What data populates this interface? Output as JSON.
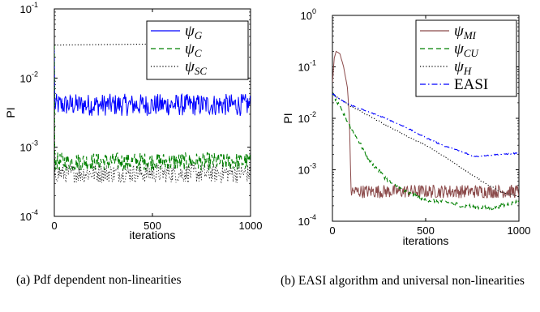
{
  "chart_data": [
    {
      "type": "line",
      "yscale": "log",
      "xlim": [
        0,
        1000
      ],
      "ylim": [
        0.0001,
        0.1
      ],
      "xlabel": "iterations",
      "ylabel": "PI",
      "xticks": [
        0,
        500,
        1000
      ],
      "xtick_labels": [
        "0",
        "500",
        "1000"
      ],
      "yticks": [
        0.0001,
        0.001,
        0.01,
        0.1
      ],
      "ytick_labels": [
        [
          "10",
          "-4"
        ],
        [
          "10",
          "-3"
        ],
        [
          "10",
          "-2"
        ],
        [
          "10",
          "-1"
        ]
      ],
      "grid": false,
      "legend_position": "top-right",
      "caption": "(a) Pdf dependent non-linearities",
      "series": [
        {
          "name": [
            "ψ",
            "G"
          ],
          "color": "#0000ff",
          "style": "solid",
          "start": 0.03,
          "level": 0.0041,
          "spread": 0.16
        },
        {
          "name": [
            "ψ",
            "C"
          ],
          "color": "#008000",
          "style": "dashed",
          "start": 0.03,
          "level": 0.00062,
          "spread": 0.13
        },
        {
          "name": [
            "ψ",
            "SC"
          ],
          "color": "#000000",
          "style": "dotted",
          "start": 0.03,
          "level": 0.032,
          "spread": 0.0,
          "extra_level": 0.00042,
          "extra_spread": 0.14
        }
      ]
    },
    {
      "type": "line",
      "yscale": "log",
      "xlim": [
        0,
        1000
      ],
      "ylim": [
        0.0001,
        1
      ],
      "xlabel": "iterations",
      "ylabel": "PI",
      "xticks": [
        0,
        500,
        1000
      ],
      "xtick_labels": [
        "0",
        "500",
        "1000"
      ],
      "yticks": [
        0.0001,
        0.001,
        0.01,
        0.1,
        1
      ],
      "ytick_labels": [
        [
          "10",
          "-4"
        ],
        [
          "10",
          "-3"
        ],
        [
          "10",
          "-2"
        ],
        [
          "10",
          "-1"
        ],
        [
          "10",
          "0"
        ]
      ],
      "grid": false,
      "legend_position": "top-right",
      "caption": "(b) EASI algorithm and universal non-linearities",
      "series": [
        {
          "name": [
            "ψ",
            "MI"
          ],
          "color": "#8b4a4a",
          "style": "solid",
          "points": [
            [
              0,
              0.05
            ],
            [
              10,
              0.15
            ],
            [
              20,
              0.2
            ],
            [
              40,
              0.18
            ],
            [
              60,
              0.1
            ],
            [
              80,
              0.04
            ],
            [
              90,
              0.012
            ],
            [
              100,
              0.0004
            ]
          ],
          "level": 0.00038,
          "spread": 0.13
        },
        {
          "name": [
            "ψ",
            "CU"
          ],
          "color": "#008000",
          "style": "dashed",
          "points": [
            [
              0,
              0.03
            ],
            [
              100,
              0.0065
            ],
            [
              200,
              0.0015
            ],
            [
              300,
              0.0006
            ],
            [
              400,
              0.00036
            ],
            [
              500,
              0.00026
            ],
            [
              600,
              0.00024
            ],
            [
              700,
              0.0002
            ],
            [
              850,
              0.00018
            ],
            [
              1000,
              0.00024
            ]
          ]
        },
        {
          "name": [
            "ψ",
            "H"
          ],
          "color": "#000000",
          "style": "dotted",
          "points": [
            [
              0,
              0.03
            ],
            [
              100,
              0.017
            ],
            [
              200,
              0.011
            ],
            [
              300,
              0.007
            ],
            [
              400,
              0.0045
            ],
            [
              500,
              0.003
            ],
            [
              600,
              0.0018
            ],
            [
              700,
              0.00105
            ],
            [
              800,
              0.0006
            ],
            [
              900,
              0.00038
            ],
            [
              1000,
              0.0003
            ]
          ]
        },
        {
          "name": [
            "EASI",
            ""
          ],
          "color": "#0000ff",
          "style": "dashdot",
          "points": [
            [
              0,
              0.03
            ],
            [
              50,
              0.022
            ],
            [
              100,
              0.018
            ],
            [
              200,
              0.013
            ],
            [
              300,
              0.0095
            ],
            [
              400,
              0.0065
            ],
            [
              500,
              0.0042
            ],
            [
              600,
              0.0029
            ],
            [
              700,
              0.0022
            ],
            [
              760,
              0.0018
            ],
            [
              820,
              0.0019
            ],
            [
              900,
              0.002
            ],
            [
              1000,
              0.0021
            ]
          ]
        }
      ]
    }
  ]
}
